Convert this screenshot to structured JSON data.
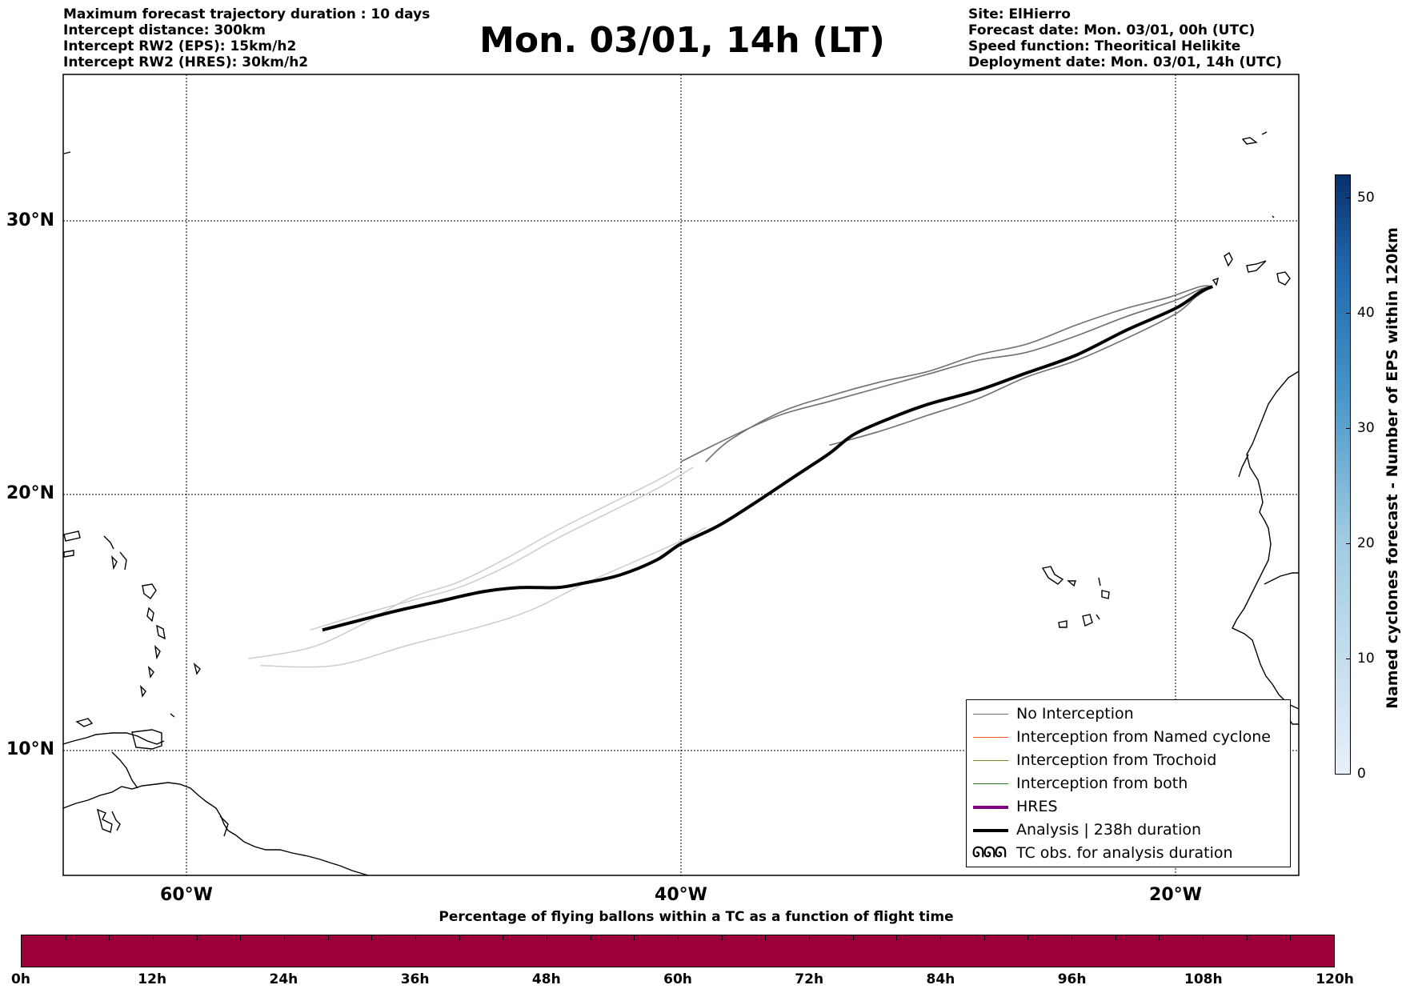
{
  "header": {
    "left_lines": [
      "Maximum forecast trajectory duration : 10 days",
      "Intercept distance: 300km",
      "Intercept RW2 (EPS):  15km/h2",
      "Intercept RW2 (HRES): 30km/h2"
    ],
    "title": "Mon. 03/01, 14h (LT)",
    "right_lines": [
      "Site: ElHierro",
      "Forecast date: Mon. 03/01, 00h (UTC)",
      "Speed function: Theoritical Helikite",
      "Deployment date: Mon. 03/01, 14h (UTC)"
    ]
  },
  "map": {
    "lon_range": [
      -65,
      -15
    ],
    "lat_range": [
      5.5,
      34.8
    ],
    "lat_labels": [
      "30°N",
      "20°N",
      "10°N"
    ],
    "lon_labels": [
      "60°W",
      "40°W",
      "20°W"
    ],
    "gridlines": true
  },
  "trajectories": {
    "analysis": [
      [
        -54.5,
        15.05
      ],
      [
        -53,
        15.4
      ],
      [
        -51.5,
        15.75
      ],
      [
        -50,
        16.05
      ],
      [
        -48,
        16.45
      ],
      [
        -46.5,
        16.6
      ],
      [
        -45,
        16.6
      ],
      [
        -44,
        16.75
      ],
      [
        -42.5,
        17.05
      ],
      [
        -41,
        17.6
      ],
      [
        -40,
        18.2
      ],
      [
        -38.5,
        18.85
      ],
      [
        -37,
        19.7
      ],
      [
        -35.5,
        20.6
      ],
      [
        -34,
        21.5
      ],
      [
        -33,
        22.2
      ],
      [
        -31.5,
        22.8
      ],
      [
        -30,
        23.3
      ],
      [
        -28,
        23.8
      ],
      [
        -26,
        24.45
      ],
      [
        -24,
        25.1
      ],
      [
        -22,
        26
      ],
      [
        -20,
        26.8
      ],
      [
        -19,
        27.4
      ],
      [
        -18.5,
        27.6
      ]
    ],
    "eps_dark": [
      [
        [
          -39,
          21.2
        ],
        [
          -38,
          22
        ],
        [
          -36,
          23
        ],
        [
          -34,
          23.6
        ],
        [
          -32,
          24.1
        ],
        [
          -30,
          24.5
        ],
        [
          -28,
          25.1
        ],
        [
          -26,
          25.5
        ],
        [
          -24,
          26.2
        ],
        [
          -22,
          26.8
        ],
        [
          -20.3,
          27.2
        ],
        [
          -19,
          27.6
        ],
        [
          -18.5,
          27.6
        ]
      ],
      [
        [
          -40,
          21.2
        ],
        [
          -38,
          22.1
        ],
        [
          -36,
          22.9
        ],
        [
          -34,
          23.4
        ],
        [
          -32,
          23.9
        ],
        [
          -30,
          24.4
        ],
        [
          -28,
          24.9
        ],
        [
          -26,
          25.2
        ],
        [
          -24,
          25.8
        ],
        [
          -22,
          26.5
        ],
        [
          -20,
          27.1
        ],
        [
          -19,
          27.5
        ],
        [
          -18.5,
          27.6
        ]
      ],
      [
        [
          -34,
          21.8
        ],
        [
          -32,
          22.3
        ],
        [
          -30,
          22.9
        ],
        [
          -28,
          23.5
        ],
        [
          -26,
          24.3
        ],
        [
          -24,
          24.9
        ],
        [
          -22,
          25.7
        ],
        [
          -20,
          26.6
        ],
        [
          -19.2,
          27.2
        ],
        [
          -18.7,
          27.5
        ]
      ]
    ],
    "eps_light": [
      [
        [
          -57.5,
          14.0
        ],
        [
          -55,
          14.4
        ],
        [
          -53,
          15.2
        ],
        [
          -51,
          16.2
        ],
        [
          -49,
          16.8
        ],
        [
          -47,
          17.7
        ],
        [
          -45,
          18.7
        ],
        [
          -43,
          19.6
        ],
        [
          -41,
          20.5
        ],
        [
          -40,
          21.0
        ]
      ],
      [
        [
          -57,
          13.75
        ],
        [
          -54,
          13.75
        ],
        [
          -51,
          14.5
        ],
        [
          -48,
          15.2
        ],
        [
          -46,
          15.8
        ],
        [
          -44,
          16.7
        ],
        [
          -42,
          17.5
        ],
        [
          -40,
          18.3
        ],
        [
          -39,
          18.8
        ]
      ],
      [
        [
          -55,
          15.05
        ],
        [
          -53,
          15.6
        ],
        [
          -51,
          16.1
        ],
        [
          -49,
          16.6
        ],
        [
          -47,
          17.4
        ],
        [
          -45,
          18.4
        ],
        [
          -43,
          19.3
        ],
        [
          -41,
          20.2
        ],
        [
          -39.5,
          21.0
        ]
      ]
    ]
  },
  "legend": {
    "items": [
      {
        "label": "No Interception",
        "color": "#6f6f6f",
        "width": 1.3
      },
      {
        "label": "Interception from Named cyclone",
        "color": "#ee5522",
        "width": 1.3
      },
      {
        "label": "Interception from Trochoid",
        "color": "#808020",
        "width": 1.3
      },
      {
        "label": "Interception from both",
        "color": "#208020",
        "width": 1.3
      },
      {
        "label": "HRES",
        "color": "#800080",
        "width": 4
      },
      {
        "label": "Analysis | 238h duration",
        "color": "#000000",
        "width": 4
      }
    ],
    "tc_obs_label": "TC obs. for analysis duration",
    "tc_obs_symbol": "ᘏᘏᘏ"
  },
  "colorbar": {
    "label": "Named cyclones forecast - Number of EPS within 120km",
    "min": 0,
    "max": 52,
    "ticks": [
      0,
      10,
      20,
      30,
      40,
      50
    ],
    "color_low": "#e8f0fa",
    "color_high": "#08306b"
  },
  "time_bar": {
    "title": "Percentage of flying ballons within a TC as a function of flight time",
    "labels": [
      "0h",
      "12h",
      "24h",
      "36h",
      "48h",
      "60h",
      "72h",
      "84h",
      "96h",
      "108h",
      "120h"
    ],
    "fill_color": "#9b0039"
  }
}
